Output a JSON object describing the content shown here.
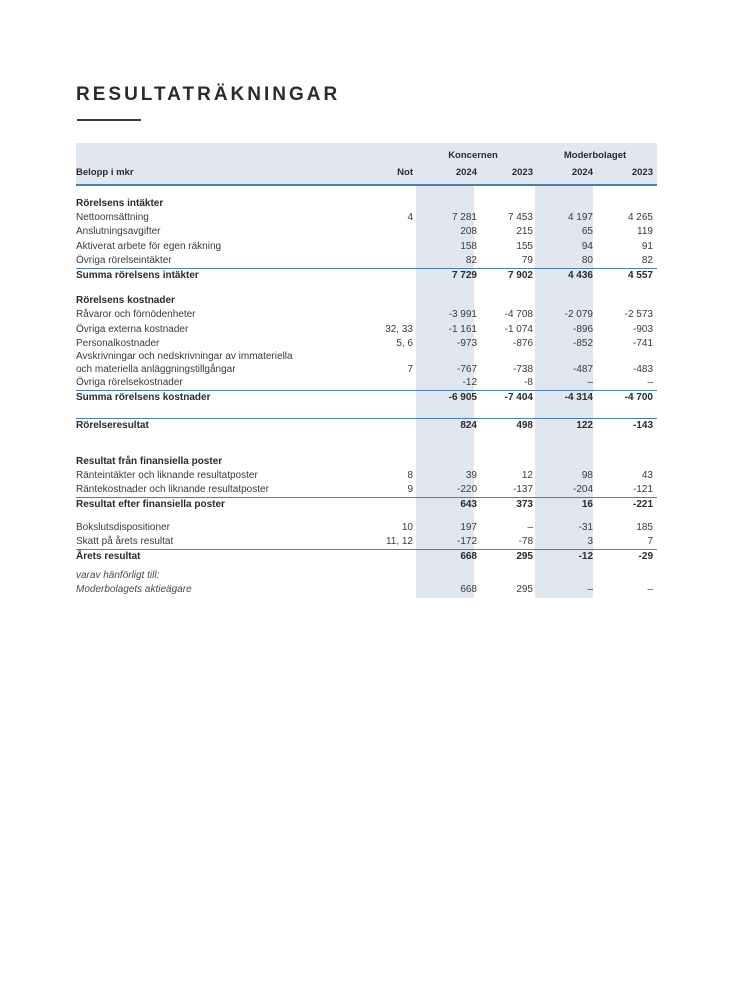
{
  "page": {
    "title": "RESULTATRÄKNINGAR"
  },
  "colors": {
    "rule_blue": "#4a80ab",
    "band_blue_gray": "#e1e7ef",
    "text": "#3a3a3a"
  },
  "table": {
    "unit_label": "Belopp i mkr",
    "not_label": "Not",
    "groups": [
      {
        "label": "Koncernen",
        "years": [
          "2024",
          "2023"
        ]
      },
      {
        "label": "Moderbolaget",
        "years": [
          "2024",
          "2023"
        ]
      }
    ],
    "rows": [
      {
        "type": "section",
        "label": "Rörelsens intäkter"
      },
      {
        "type": "item",
        "label": "Nettoomsättning",
        "not": "4",
        "values": [
          "7 281",
          "7 453",
          "4 197",
          "4 265"
        ]
      },
      {
        "type": "item",
        "label": "Anslutningsavgifter",
        "not": "",
        "values": [
          "208",
          "215",
          "65",
          "119"
        ]
      },
      {
        "type": "item",
        "label": "Aktiverat arbete för egen räkning",
        "not": "",
        "values": [
          "158",
          "155",
          "94",
          "91"
        ]
      },
      {
        "type": "item",
        "label": "Övriga rörelseintäkter",
        "not": "",
        "values": [
          "82",
          "79",
          "80",
          "82"
        ]
      },
      {
        "type": "total",
        "label": "Summa rörelsens intäkter",
        "not": "",
        "values": [
          "7 729",
          "7 902",
          "4 436",
          "4 557"
        ]
      },
      {
        "type": "spacer",
        "h": 11
      },
      {
        "type": "section",
        "label": "Rörelsens kostnader"
      },
      {
        "type": "item",
        "label": "Råvaror och förnödenheter",
        "not": "",
        "values": [
          "-3 991",
          "-4 708",
          "-2 079",
          "-2 573"
        ]
      },
      {
        "type": "item",
        "label": "Övriga externa kostnader",
        "not": "32, 33",
        "values": [
          "-1 161",
          "-1 074",
          "-896",
          "-903"
        ]
      },
      {
        "type": "item",
        "label": "Personalkostnader",
        "not": "5, 6",
        "values": [
          "-973",
          "-876",
          "-852",
          "-741"
        ]
      },
      {
        "type": "item",
        "label": "Avskrivningar och nedskrivningar av immateriella",
        "label2": "och materiella anläggningstillgångar",
        "not": "7",
        "values": [
          "-767",
          "-738",
          "-487",
          "-483"
        ]
      },
      {
        "type": "item",
        "label": "Övriga rörelsekostnader",
        "not": "",
        "values": [
          "-12",
          "-8",
          "–",
          "–"
        ]
      },
      {
        "type": "total",
        "label": "Summa rörelsens kostnader",
        "not": "",
        "values": [
          "-6 905",
          "-7 404",
          "-4 314",
          "-4 700"
        ]
      },
      {
        "type": "spacer",
        "h": 12
      },
      {
        "type": "total",
        "label": "Rörelseresultat",
        "not": "",
        "values": [
          "824",
          "498",
          "122",
          "-143"
        ]
      },
      {
        "type": "spacer",
        "h": 22
      },
      {
        "type": "section",
        "label": "Resultat från finansiella poster"
      },
      {
        "type": "item",
        "label": "Ränteintäkter och liknande resultatposter",
        "not": "8",
        "values": [
          "39",
          "12",
          "98",
          "43"
        ]
      },
      {
        "type": "item",
        "label": "Räntekostnader och liknande resultatposter",
        "not": "9",
        "values": [
          "-220",
          "-137",
          "-204",
          "-121"
        ]
      },
      {
        "type": "total",
        "label": "Resultat efter finansiella poster",
        "not": "",
        "values": [
          "643",
          "373",
          "16",
          "-221"
        ]
      },
      {
        "type": "spacer",
        "h": 8
      },
      {
        "type": "item",
        "label": "Bokslutsdispositioner",
        "not": "10",
        "values": [
          "197",
          "–",
          "-31",
          "185"
        ]
      },
      {
        "type": "item",
        "label": "Skatt på årets resultat",
        "not": "11, 12",
        "values": [
          "-172",
          "-78",
          "3",
          "7"
        ]
      },
      {
        "type": "total",
        "label": "Årets resultat",
        "not": "",
        "values": [
          "668",
          "295",
          "-12",
          "-29"
        ]
      },
      {
        "type": "spacer",
        "h": 5
      },
      {
        "type": "note",
        "label": "varav hänförligt till:"
      },
      {
        "type": "note",
        "label": "Moderbolagets aktieägare",
        "not": "",
        "values": [
          "668",
          "295",
          "–",
          "–"
        ]
      }
    ]
  }
}
